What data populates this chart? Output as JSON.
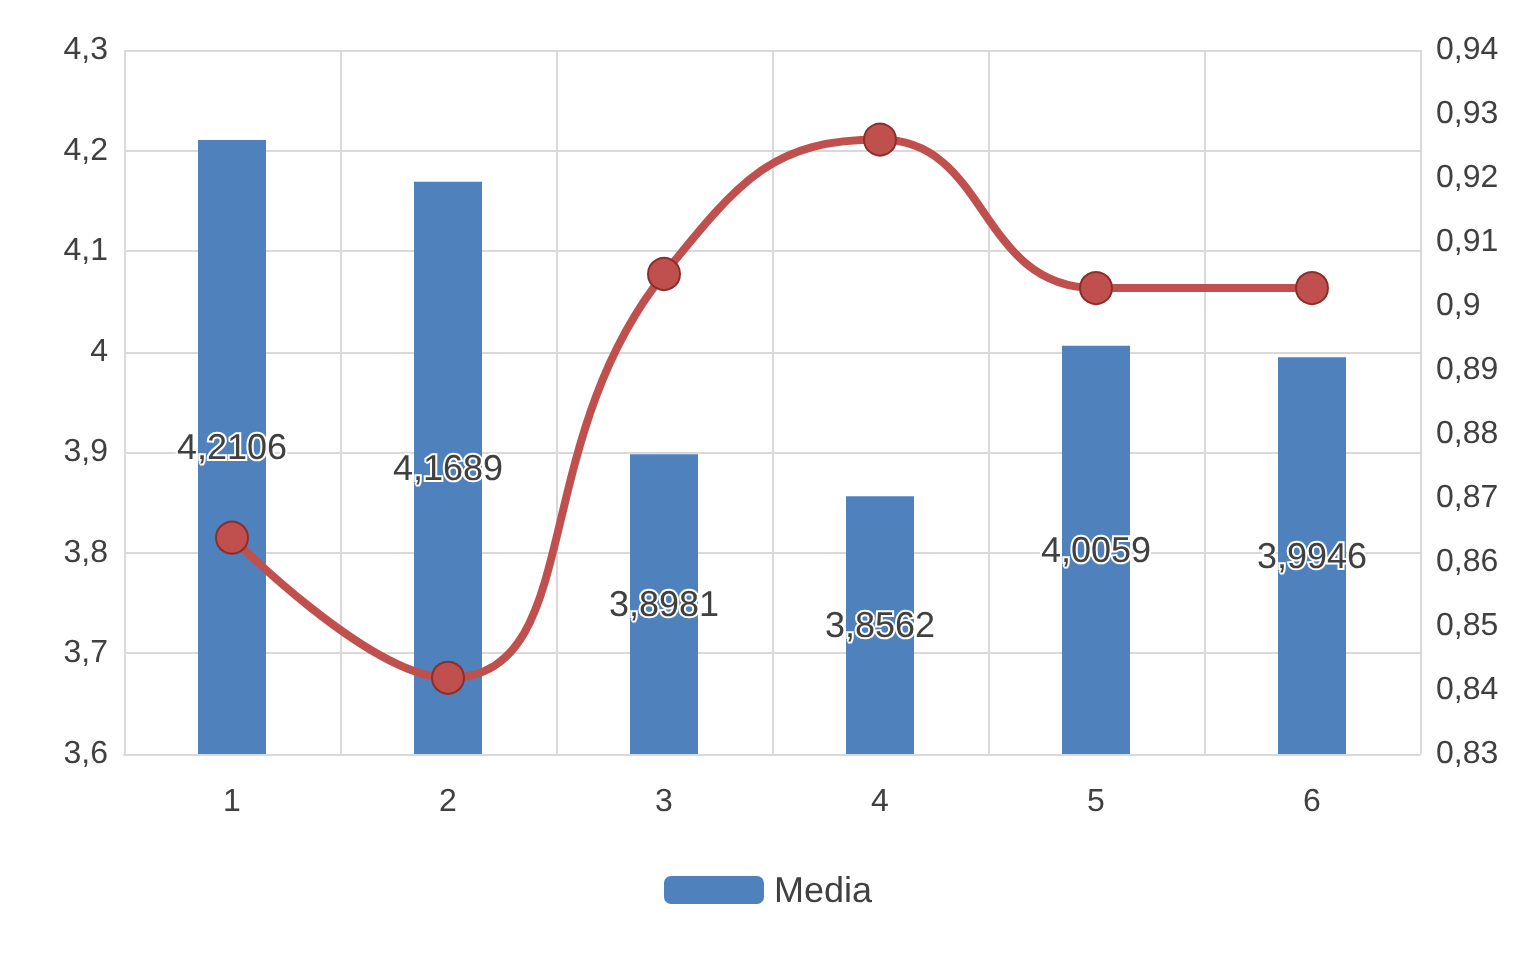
{
  "chart_data": {
    "type": "bar",
    "categories": [
      "1",
      "2",
      "3",
      "4",
      "5",
      "6"
    ],
    "series": [
      {
        "name": "Media",
        "color": "#4f81bd",
        "values": [
          4.2106,
          4.1689,
          3.8981,
          3.8562,
          4.0059,
          3.9946
        ],
        "value_labels": [
          "4,2106",
          "4,1689",
          "3,8981",
          "3,8562",
          "4,0059",
          "3,9946"
        ]
      },
      {
        "type": "line",
        "axis": "y2",
        "color": "#c0504d",
        "values": [
          0.8638,
          0.8419,
          0.905,
          0.926,
          0.9028,
          0.9028
        ]
      }
    ],
    "ylim": [
      3.6,
      4.3
    ],
    "yticks": [
      {
        "value": 3.6,
        "label": "3,6"
      },
      {
        "value": 3.7,
        "label": "3,7"
      },
      {
        "value": 3.8,
        "label": "3,8"
      },
      {
        "value": 3.9,
        "label": "3,9"
      },
      {
        "value": 4,
        "label": "4"
      },
      {
        "value": 4.1,
        "label": "4,1"
      },
      {
        "value": 4.2,
        "label": "4,2"
      },
      {
        "value": 4.3,
        "label": "4,3"
      }
    ],
    "y2lim": [
      0.83,
      0.94
    ],
    "y2ticks": [
      {
        "value": 0.83,
        "label": "0,83"
      },
      {
        "value": 0.84,
        "label": "0,84"
      },
      {
        "value": 0.85,
        "label": "0,85"
      },
      {
        "value": 0.86,
        "label": "0,86"
      },
      {
        "value": 0.87,
        "label": "0,87"
      },
      {
        "value": 0.88,
        "label": "0,88"
      },
      {
        "value": 0.89,
        "label": "0,89"
      },
      {
        "value": 0.9,
        "label": "0,9"
      },
      {
        "value": 0.91,
        "label": "0,91"
      },
      {
        "value": 0.92,
        "label": "0,92"
      },
      {
        "value": 0.93,
        "label": "0,93"
      },
      {
        "value": 0.94,
        "label": "0,94"
      }
    ],
    "grid": true,
    "legend": "bottom",
    "marker": "circle",
    "line_style": "solid"
  }
}
